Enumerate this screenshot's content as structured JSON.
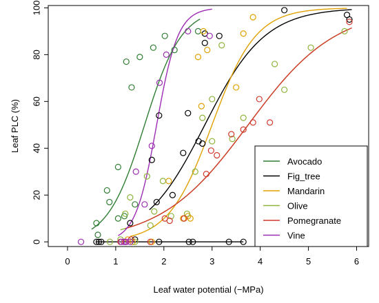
{
  "chart_data": {
    "type": "scatter",
    "title": "",
    "xlabel": "Leaf water potential (−MPa)",
    "ylabel": "Leaf PLC (%)",
    "xlim": [
      -0.4,
      6.25
    ],
    "ylim": [
      -2,
      101
    ],
    "xticks": [
      0,
      1,
      2,
      3,
      4,
      5,
      6
    ],
    "yticks": [
      0,
      20,
      40,
      60,
      80,
      100
    ],
    "grid": false,
    "legend_position": "bottom-right",
    "series": [
      {
        "name": "Avocado",
        "color": "#2e7d32",
        "curve": {
          "p50": 1.6,
          "slope": 2.6,
          "x_start": 0.5,
          "x_end": 2.75
        },
        "points": [
          [
            0.63,
            3
          ],
          [
            0.6,
            8
          ],
          [
            0.82,
            22
          ],
          [
            0.87,
            17
          ],
          [
            1.05,
            10
          ],
          [
            1.05,
            32
          ],
          [
            1.18,
            11
          ],
          [
            1.22,
            77
          ],
          [
            1.33,
            66
          ],
          [
            1.4,
            16
          ],
          [
            1.5,
            79
          ],
          [
            1.78,
            83
          ],
          [
            2.02,
            88
          ],
          [
            2.22,
            82
          ],
          [
            2.71,
            90
          ]
        ]
      },
      {
        "name": "Fig_tree",
        "color": "#000000",
        "curve": {
          "p50": 2.85,
          "slope": 1.6,
          "x_start": 1.7,
          "x_end": 5.9
        },
        "points": [
          [
            0.6,
            0
          ],
          [
            0.65,
            0
          ],
          [
            0.7,
            0
          ],
          [
            1.3,
            8
          ],
          [
            1.4,
            1
          ],
          [
            1.75,
            35
          ],
          [
            1.85,
            17
          ],
          [
            1.9,
            0
          ],
          [
            1.9,
            54
          ],
          [
            2.18,
            20
          ],
          [
            2.4,
            38
          ],
          [
            2.52,
            0
          ],
          [
            2.5,
            55
          ],
          [
            2.6,
            0
          ],
          [
            2.72,
            43
          ],
          [
            2.8,
            42
          ],
          [
            2.85,
            85
          ],
          [
            2.85,
            89
          ],
          [
            3.15,
            88
          ],
          [
            3.35,
            0
          ],
          [
            3.65,
            0
          ],
          [
            4.5,
            99
          ],
          [
            5.8,
            97
          ],
          [
            5.85,
            95
          ]
        ]
      },
      {
        "name": "Mandarin",
        "color": "#e0a100",
        "curve": {
          "p50": 3.0,
          "slope": 2.2,
          "x_start": 1.3,
          "x_end": 5.8
        },
        "points": [
          [
            1.25,
            1
          ],
          [
            1.35,
            0
          ],
          [
            1.75,
            0
          ],
          [
            2.1,
            26
          ],
          [
            2.4,
            10
          ],
          [
            2.5,
            11
          ],
          [
            2.55,
            10
          ],
          [
            2.71,
            79
          ],
          [
            2.78,
            58
          ],
          [
            2.82,
            90
          ],
          [
            2.9,
            82
          ],
          [
            3.5,
            66
          ],
          [
            3.65,
            89
          ],
          [
            3.85,
            96
          ]
        ]
      },
      {
        "name": "Olive",
        "color": "#8db33a",
        "curve": {
          "p50": 3.75,
          "slope": 1.1,
          "x_start": 1.1,
          "x_end": 5.85
        },
        "points": [
          [
            0.88,
            0
          ],
          [
            1.1,
            1
          ],
          [
            1.2,
            12
          ],
          [
            1.3,
            19
          ],
          [
            1.4,
            0
          ],
          [
            1.65,
            28
          ],
          [
            1.72,
            7
          ],
          [
            1.8,
            13
          ],
          [
            1.98,
            26
          ],
          [
            2.15,
            11
          ],
          [
            2.48,
            12
          ],
          [
            2.65,
            30
          ],
          [
            2.8,
            53
          ],
          [
            3.0,
            61
          ],
          [
            3.0,
            43
          ],
          [
            3.2,
            84
          ],
          [
            3.42,
            44
          ],
          [
            3.65,
            53
          ],
          [
            4.3,
            76
          ],
          [
            4.5,
            65
          ],
          [
            5.05,
            83
          ],
          [
            5.75,
            90
          ]
        ]
      },
      {
        "name": "Pomegranate",
        "color": "#d1392b",
        "curve": {
          "p50": 3.75,
          "slope": 1.1,
          "x_start": 1.2,
          "x_end": 5.9
        },
        "points": [
          [
            1.1,
            0
          ],
          [
            1.2,
            0
          ],
          [
            1.32,
            1
          ],
          [
            1.72,
            0
          ],
          [
            2.02,
            10
          ],
          [
            2.12,
            9
          ],
          [
            2.42,
            10
          ],
          [
            2.88,
            29
          ],
          [
            2.98,
            39
          ],
          [
            3.1,
            37
          ],
          [
            3.4,
            46
          ],
          [
            3.65,
            48
          ],
          [
            3.85,
            51
          ],
          [
            3.98,
            61
          ],
          [
            4.2,
            51
          ],
          [
            5.85,
            94
          ]
        ]
      },
      {
        "name": "Vine",
        "color": "#9c2cb3",
        "curve": {
          "p50": 1.85,
          "slope": 4.5,
          "x_start": 1.05,
          "x_end": 3.0
        },
        "points": [
          [
            0.28,
            0
          ],
          [
            1.12,
            0
          ],
          [
            1.17,
            0
          ],
          [
            1.22,
            0
          ],
          [
            1.3,
            0
          ],
          [
            1.42,
            30
          ],
          [
            1.6,
            16
          ],
          [
            1.75,
            41
          ],
          [
            1.91,
            68
          ],
          [
            2.05,
            80
          ],
          [
            2.5,
            90
          ],
          [
            2.95,
            88
          ]
        ]
      }
    ]
  }
}
